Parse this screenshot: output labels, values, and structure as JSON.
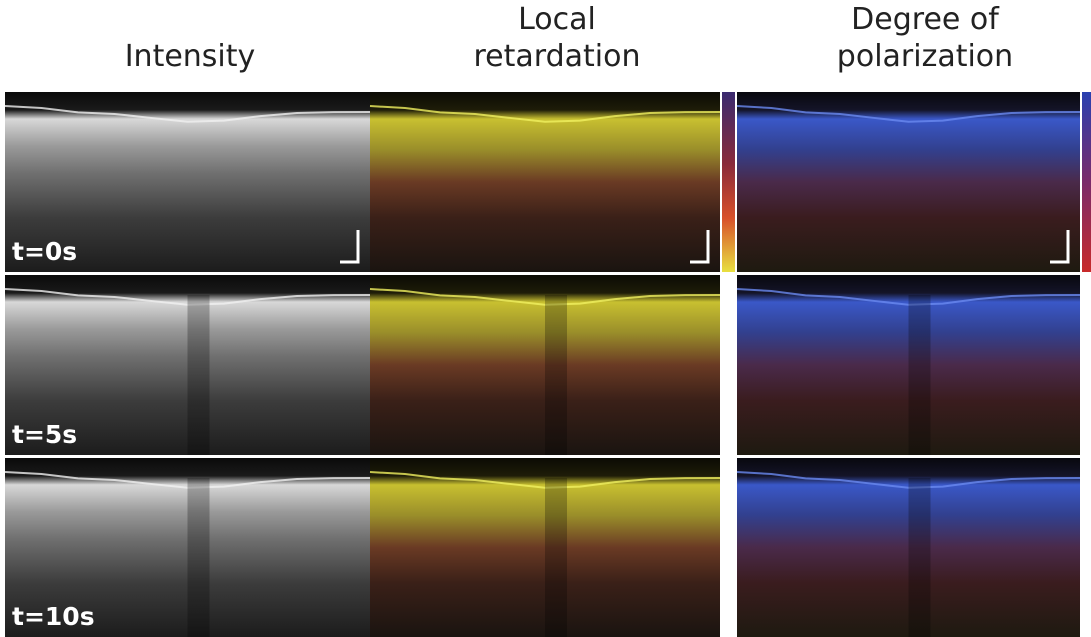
{
  "columns": [
    {
      "lines": [
        "Intensity"
      ]
    },
    {
      "lines": [
        "Local",
        "retardation"
      ]
    },
    {
      "lines": [
        "Degree of",
        "polarization"
      ]
    }
  ],
  "rows": [
    {
      "label": "t=0s"
    },
    {
      "label": "t=5s"
    },
    {
      "label": "t=10s"
    }
  ]
}
